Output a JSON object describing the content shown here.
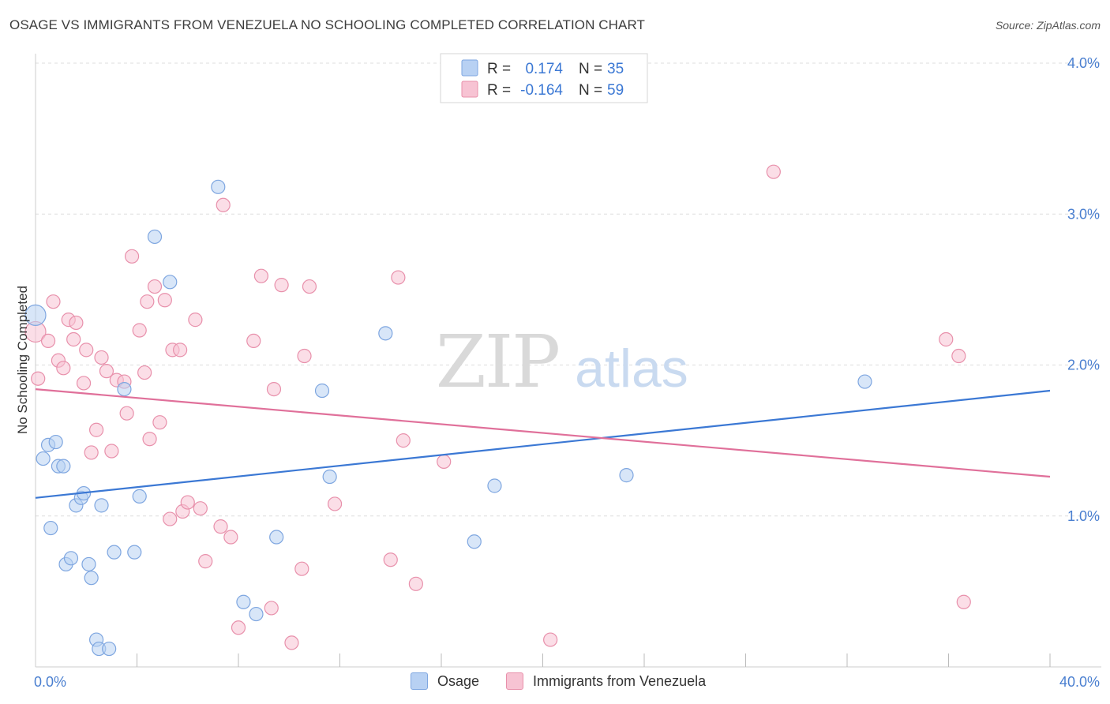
{
  "title": "OSAGE VS IMMIGRANTS FROM VENEZUELA NO SCHOOLING COMPLETED CORRELATION CHART",
  "source": "Source: ZipAtlas.com",
  "watermark": {
    "zip": "ZIP",
    "atlas": "atlas"
  },
  "colors": {
    "blue_fill": "#b8d1f3",
    "blue_stroke": "#7ea6e0",
    "blue_line": "#3b78d4",
    "pink_fill": "#f7c3d3",
    "pink_stroke": "#e890ab",
    "pink_line": "#e0709a",
    "tick_text": "#4a7fd0",
    "grid": "#dddddd"
  },
  "legend": {
    "rows": [
      {
        "r_label": "R =",
        "r_value": "0.174",
        "n_label": "N =",
        "n_value": "35"
      },
      {
        "r_label": "R =",
        "r_value": "-0.164",
        "n_label": "N =",
        "n_value": "59"
      }
    ]
  },
  "chart_data": {
    "type": "scatter",
    "xlabel": "",
    "ylabel": "No Schooling Completed",
    "xlim": [
      0,
      40
    ],
    "ylim": [
      0,
      4.0
    ],
    "x_tick_labels": [
      "0.0%",
      "40.0%"
    ],
    "y_ticks": [
      1.0,
      2.0,
      3.0,
      4.0
    ],
    "y_tick_labels": [
      "1.0%",
      "2.0%",
      "3.0%",
      "4.0%"
    ],
    "grid": true,
    "legend_position": "top-center",
    "series": [
      {
        "name": "Osage",
        "color": "#b8d1f3",
        "trend": {
          "x": [
            0,
            40
          ],
          "y": [
            1.12,
            1.83
          ]
        },
        "points": [
          [
            0.0,
            2.33
          ],
          [
            0.3,
            1.38
          ],
          [
            0.5,
            1.47
          ],
          [
            0.8,
            1.49
          ],
          [
            0.9,
            1.33
          ],
          [
            1.1,
            1.33
          ],
          [
            0.6,
            0.92
          ],
          [
            1.2,
            0.68
          ],
          [
            1.4,
            0.72
          ],
          [
            1.6,
            1.07
          ],
          [
            1.8,
            1.12
          ],
          [
            1.9,
            1.15
          ],
          [
            2.1,
            0.68
          ],
          [
            2.2,
            0.59
          ],
          [
            2.4,
            0.18
          ],
          [
            2.5,
            0.12
          ],
          [
            2.6,
            1.07
          ],
          [
            2.9,
            0.12
          ],
          [
            3.1,
            0.76
          ],
          [
            3.5,
            1.84
          ],
          [
            3.9,
            0.76
          ],
          [
            4.1,
            1.13
          ],
          [
            4.7,
            2.85
          ],
          [
            5.3,
            2.55
          ],
          [
            7.2,
            3.18
          ],
          [
            8.2,
            0.43
          ],
          [
            8.7,
            0.35
          ],
          [
            9.5,
            0.86
          ],
          [
            11.3,
            1.83
          ],
          [
            11.6,
            1.26
          ],
          [
            13.8,
            2.21
          ],
          [
            17.3,
            0.83
          ],
          [
            18.1,
            1.2
          ],
          [
            23.3,
            1.27
          ],
          [
            32.7,
            1.89
          ]
        ]
      },
      {
        "name": "Immigrants from Venezuela",
        "color": "#f7c3d3",
        "trend": {
          "x": [
            0,
            40
          ],
          "y": [
            1.84,
            1.26
          ]
        },
        "points": [
          [
            0.0,
            2.22
          ],
          [
            0.1,
            1.91
          ],
          [
            0.5,
            2.16
          ],
          [
            0.7,
            2.42
          ],
          [
            0.9,
            2.03
          ],
          [
            1.1,
            1.98
          ],
          [
            1.3,
            2.3
          ],
          [
            1.5,
            2.17
          ],
          [
            1.6,
            2.28
          ],
          [
            1.9,
            1.88
          ],
          [
            2.0,
            2.1
          ],
          [
            2.2,
            1.42
          ],
          [
            2.4,
            1.57
          ],
          [
            2.6,
            2.05
          ],
          [
            2.8,
            1.96
          ],
          [
            3.0,
            1.43
          ],
          [
            3.2,
            1.9
          ],
          [
            3.5,
            1.89
          ],
          [
            3.6,
            1.68
          ],
          [
            3.8,
            2.72
          ],
          [
            4.1,
            2.23
          ],
          [
            4.3,
            1.95
          ],
          [
            4.4,
            2.42
          ],
          [
            4.5,
            1.51
          ],
          [
            4.7,
            2.52
          ],
          [
            4.9,
            1.62
          ],
          [
            5.1,
            2.43
          ],
          [
            5.3,
            0.98
          ],
          [
            5.4,
            2.1
          ],
          [
            5.7,
            2.1
          ],
          [
            5.8,
            1.03
          ],
          [
            6.0,
            1.09
          ],
          [
            6.3,
            2.3
          ],
          [
            6.5,
            1.05
          ],
          [
            6.7,
            0.7
          ],
          [
            7.3,
            0.93
          ],
          [
            7.4,
            3.06
          ],
          [
            7.7,
            0.86
          ],
          [
            8.0,
            0.26
          ],
          [
            8.6,
            2.16
          ],
          [
            8.9,
            2.59
          ],
          [
            9.3,
            0.39
          ],
          [
            9.4,
            1.84
          ],
          [
            9.7,
            2.53
          ],
          [
            10.1,
            0.16
          ],
          [
            10.5,
            0.65
          ],
          [
            10.6,
            2.06
          ],
          [
            10.8,
            2.52
          ],
          [
            11.8,
            1.08
          ],
          [
            14.0,
            0.71
          ],
          [
            14.3,
            2.58
          ],
          [
            14.5,
            1.5
          ],
          [
            15.0,
            0.55
          ],
          [
            16.1,
            1.36
          ],
          [
            20.3,
            0.18
          ],
          [
            29.1,
            3.28
          ],
          [
            35.9,
            2.17
          ],
          [
            36.4,
            2.06
          ],
          [
            36.6,
            0.43
          ]
        ]
      }
    ]
  }
}
